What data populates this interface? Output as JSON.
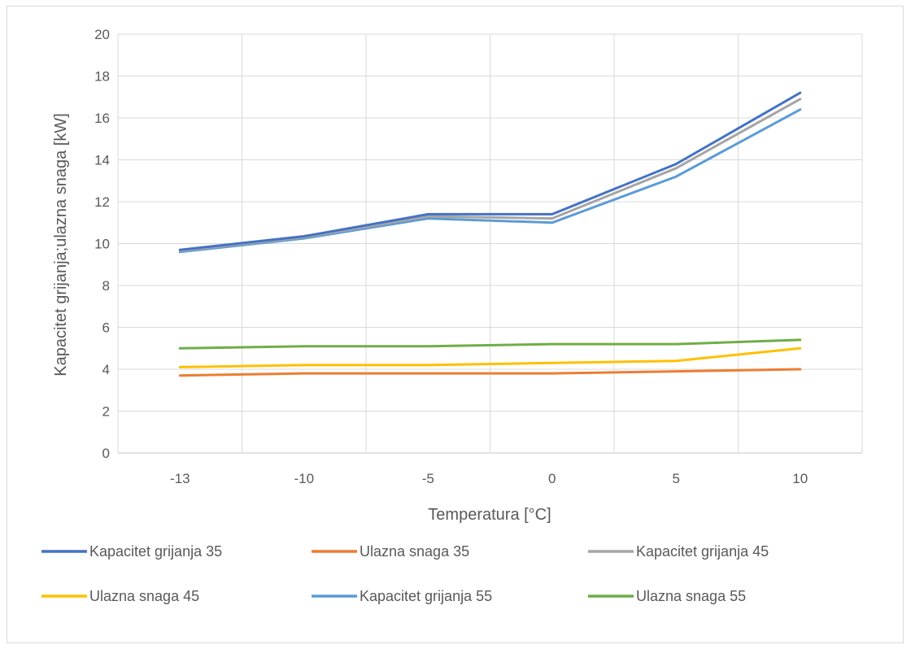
{
  "chart_data": {
    "type": "line",
    "title": "",
    "xlabel": "Temperatura [°C]",
    "ylabel": "Kapacitet grijanja;ulazna snaga [kW]",
    "categories": [
      "-13",
      "-10",
      "-5",
      "0",
      "5",
      "10"
    ],
    "ylim": [
      0,
      20
    ],
    "yticks": [
      "0",
      "2",
      "4",
      "6",
      "8",
      "10",
      "12",
      "14",
      "16",
      "18",
      "20"
    ],
    "grid": true,
    "legend_position": "bottom",
    "series": [
      {
        "name": "Kapacitet grijanja 35",
        "color": "#4472c4",
        "values": [
          9.7,
          10.35,
          11.4,
          11.4,
          13.8,
          17.2
        ]
      },
      {
        "name": "Ulazna snaga 35",
        "color": "#ed7d31",
        "values": [
          3.7,
          3.8,
          3.8,
          3.8,
          3.9,
          4.0
        ]
      },
      {
        "name": "Kapacitet grijanja 45",
        "color": "#a5a5a5",
        "values": [
          9.65,
          10.3,
          11.3,
          11.2,
          13.6,
          16.9
        ]
      },
      {
        "name": "Ulazna snaga 45",
        "color": "#ffc000",
        "values": [
          4.1,
          4.2,
          4.2,
          4.3,
          4.4,
          5.0
        ]
      },
      {
        "name": "Kapacitet grijanja 55",
        "color": "#5b9bd5",
        "values": [
          9.6,
          10.25,
          11.2,
          11.0,
          13.2,
          16.4
        ]
      },
      {
        "name": "Ulazna snaga 55",
        "color": "#70ad47",
        "values": [
          5.0,
          5.1,
          5.1,
          5.2,
          5.2,
          5.4
        ]
      }
    ]
  }
}
